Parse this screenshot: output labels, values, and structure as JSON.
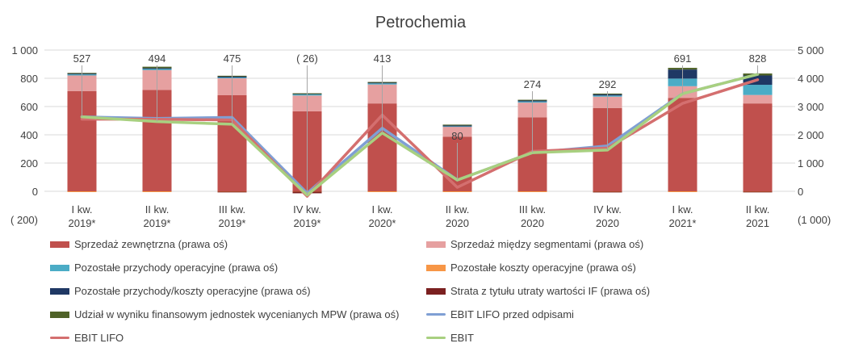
{
  "chart_data": {
    "type": "bar",
    "title": "Petrochemia",
    "categories": [
      [
        "I kw.",
        "2019*"
      ],
      [
        "II kw.",
        "2019*"
      ],
      [
        "III kw.",
        "2019*"
      ],
      [
        "IV kw.",
        "2019*"
      ],
      [
        "I kw.",
        "2020*"
      ],
      [
        "II kw.",
        "2020"
      ],
      [
        "III kw.",
        "2020"
      ],
      [
        "IV kw.",
        "2020"
      ],
      [
        "I kw.",
        "2021*"
      ],
      [
        "II kw.",
        "2021"
      ]
    ],
    "left_axis": {
      "ticks": [
        "1 000",
        "800",
        "600",
        "400",
        "200",
        "0",
        "( 200)"
      ],
      "ylim": [
        -200,
        1000
      ]
    },
    "right_axis": {
      "ticks": [
        "5 000",
        "4 000",
        "3 000",
        "2 000",
        "1 000",
        "0",
        "(1 000)"
      ],
      "ylim": [
        -1000,
        5000
      ]
    },
    "bar_labels": [
      "527",
      "494",
      "475",
      "( 26)",
      "413",
      "80",
      "274",
      "292",
      "691",
      "828"
    ],
    "series": [
      {
        "name": "Sprzedaż zewnętrzna (prawa oś)",
        "kind": "bar",
        "color": "#c0504d",
        "values": [
          3550,
          3590,
          3400,
          2830,
          3110,
          1930,
          2620,
          2950,
          3300,
          3110
        ]
      },
      {
        "name": "Sprzedaż między segmentami (prawa oś)",
        "kind": "bar",
        "color": "#e6a0a0",
        "values": [
          550,
          700,
          600,
          560,
          670,
          360,
          520,
          400,
          420,
          300
        ]
      },
      {
        "name": "Pozostałe przychody operacyjne (prawa oś)",
        "kind": "bar",
        "color": "#4bacc6",
        "values": [
          40,
          40,
          30,
          50,
          40,
          20,
          40,
          40,
          270,
          360
        ]
      },
      {
        "name": "Pozostałe koszty operacyjne (prawa oś)",
        "kind": "bar",
        "color": "#f79646",
        "values": [
          -10,
          -10,
          -10,
          -10,
          -10,
          -10,
          -10,
          -10,
          -10,
          -10
        ]
      },
      {
        "name": "Pozostałe przychody/koszty operacyjne (prawa oś)",
        "kind": "bar",
        "color": "#1f3864",
        "values": [
          30,
          30,
          40,
          20,
          40,
          20,
          40,
          40,
          320,
          330
        ]
      },
      {
        "name": "Strata z tytułu utraty wartości IF  (prawa oś)",
        "kind": "bar",
        "color": "#7b2020",
        "values": [
          0,
          0,
          -20,
          -60,
          0,
          0,
          0,
          -30,
          0,
          -20
        ]
      },
      {
        "name": "Udział w wyniku finansowym jednostek wycenianych MPW (prawa oś)",
        "kind": "bar",
        "color": "#4f6228",
        "values": [
          20,
          50,
          20,
          10,
          10,
          30,
          20,
          30,
          60,
          70
        ]
      },
      {
        "name": "EBIT LIFO przed odpisami",
        "kind": "line",
        "color": "#7f9fd4",
        "values": [
          527,
          516,
          523,
          -14,
          447,
          80,
          274,
          322,
          691,
          828
        ]
      },
      {
        "name": "EBIT LIFO",
        "kind": "line",
        "color": "#d46f6f",
        "values": [
          511,
          510,
          505,
          -35,
          540,
          28,
          283,
          306,
          622,
          790
        ]
      },
      {
        "name": "EBIT",
        "kind": "line",
        "color": "#a8d080",
        "values": [
          527,
          494,
          475,
          -26,
          413,
          80,
          274,
          292,
          691,
          828
        ]
      }
    ]
  }
}
